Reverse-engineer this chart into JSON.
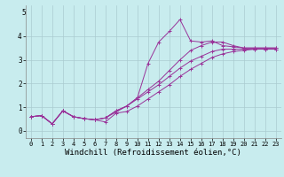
{
  "bg_color": "#c8ecee",
  "grid_color": "#aaccd0",
  "line_color": "#993399",
  "xlabel": "Windchill (Refroidissement éolien,°C)",
  "xlabel_fontsize": 6.5,
  "xlim": [
    -0.5,
    23.5
  ],
  "ylim": [
    -0.3,
    5.3
  ],
  "yticks": [
    0,
    1,
    2,
    3,
    4
  ],
  "ytick_top": 5,
  "xticks": [
    0,
    1,
    2,
    3,
    4,
    5,
    6,
    7,
    8,
    9,
    10,
    11,
    12,
    13,
    14,
    15,
    16,
    17,
    18,
    19,
    20,
    21,
    22,
    23
  ],
  "lines": [
    [
      0.6,
      0.65,
      0.3,
      0.85,
      0.6,
      0.52,
      0.47,
      0.38,
      0.75,
      0.82,
      1.05,
      1.35,
      1.65,
      1.95,
      2.3,
      2.6,
      2.85,
      3.1,
      3.25,
      3.35,
      3.4,
      3.45,
      3.45,
      3.45
    ],
    [
      0.6,
      0.65,
      0.3,
      0.85,
      0.6,
      0.52,
      0.47,
      0.55,
      0.8,
      1.05,
      1.35,
      1.65,
      1.95,
      2.3,
      2.65,
      2.95,
      3.15,
      3.35,
      3.45,
      3.45,
      3.45,
      3.45,
      3.45,
      3.45
    ],
    [
      0.6,
      0.65,
      0.3,
      0.85,
      0.6,
      0.52,
      0.47,
      0.55,
      0.85,
      1.05,
      1.4,
      1.75,
      2.1,
      2.55,
      3.0,
      3.4,
      3.6,
      3.75,
      3.75,
      3.6,
      3.5,
      3.5,
      3.5,
      3.5
    ],
    [
      0.6,
      0.65,
      0.3,
      0.85,
      0.6,
      0.52,
      0.47,
      0.55,
      0.85,
      1.05,
      1.4,
      2.85,
      3.75,
      4.2,
      4.7,
      3.8,
      3.75,
      3.8,
      3.6,
      3.55,
      3.5,
      3.5,
      3.5,
      3.5
    ]
  ]
}
